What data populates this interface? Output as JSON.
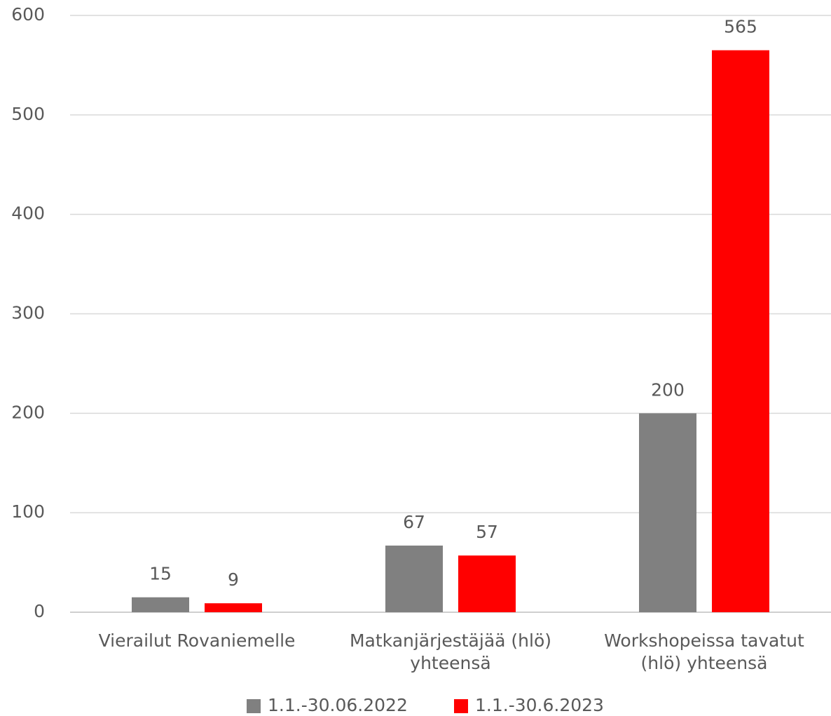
{
  "chart_data": {
    "type": "bar",
    "categories": [
      "Vierailut Rovaniemelle",
      "Matkanjärjestäjää (hlö)\nyhteensä",
      "Workshopeissa tavatut\n(hlö) yhteensä"
    ],
    "series": [
      {
        "name": "1.1.-30.06.2022",
        "color": "#808080",
        "values": [
          15,
          67,
          200
        ]
      },
      {
        "name": "1.1.-30.6.2023",
        "color": "#ff0000",
        "values": [
          9,
          57,
          565
        ]
      }
    ],
    "ylim": [
      0,
      600
    ],
    "yticks": [
      0,
      100,
      200,
      300,
      400,
      500,
      600
    ],
    "grid": true,
    "legend": "bottom"
  }
}
